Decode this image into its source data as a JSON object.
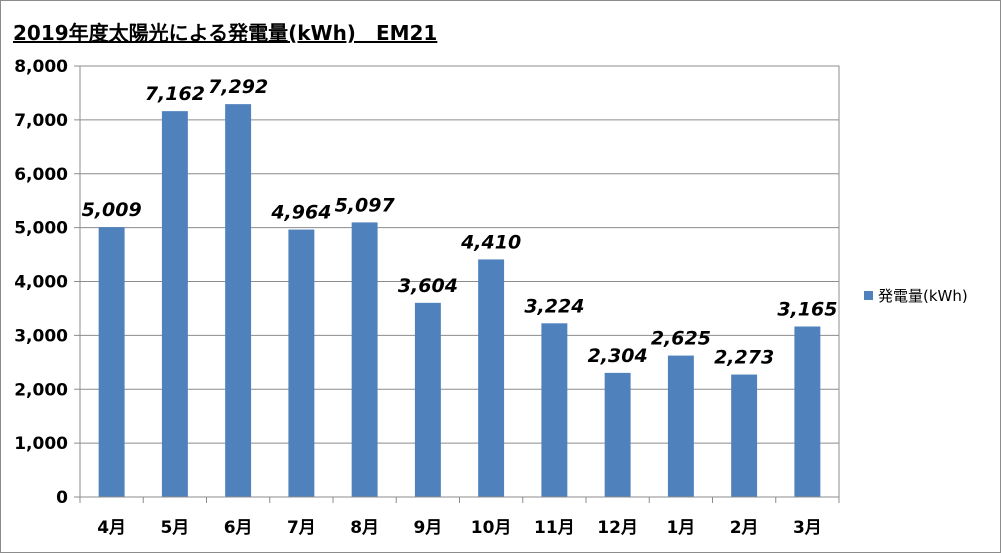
{
  "chart_data": {
    "type": "bar",
    "title": "2019年度太陽光による発電量(kWh)　EM21",
    "categories": [
      "4月",
      "5月",
      "6月",
      "7月",
      "8月",
      "9月",
      "10月",
      "11月",
      "12月",
      "1月",
      "2月",
      "3月"
    ],
    "series": [
      {
        "name": "発電量(kWh)",
        "color": "#4f81bd",
        "values": [
          5009,
          7162,
          7292,
          4964,
          5097,
          3604,
          4410,
          3224,
          2304,
          2625,
          2273,
          3165
        ],
        "data_labels": [
          "5,009",
          "7,162",
          "7,292",
          "4,964",
          "5,097",
          "3,604",
          "4,410",
          "3,224",
          "2,304",
          "2,625",
          "2,273",
          "3,165"
        ]
      }
    ],
    "ylim": [
      0,
      8000
    ],
    "y_ticks": [
      0,
      1000,
      2000,
      3000,
      4000,
      5000,
      6000,
      7000,
      8000
    ],
    "y_tick_labels": [
      "0",
      "1,000",
      "2,000",
      "3,000",
      "4,000",
      "5,000",
      "6,000",
      "7,000",
      "8,000"
    ],
    "grid": true,
    "legend_position": "right"
  }
}
